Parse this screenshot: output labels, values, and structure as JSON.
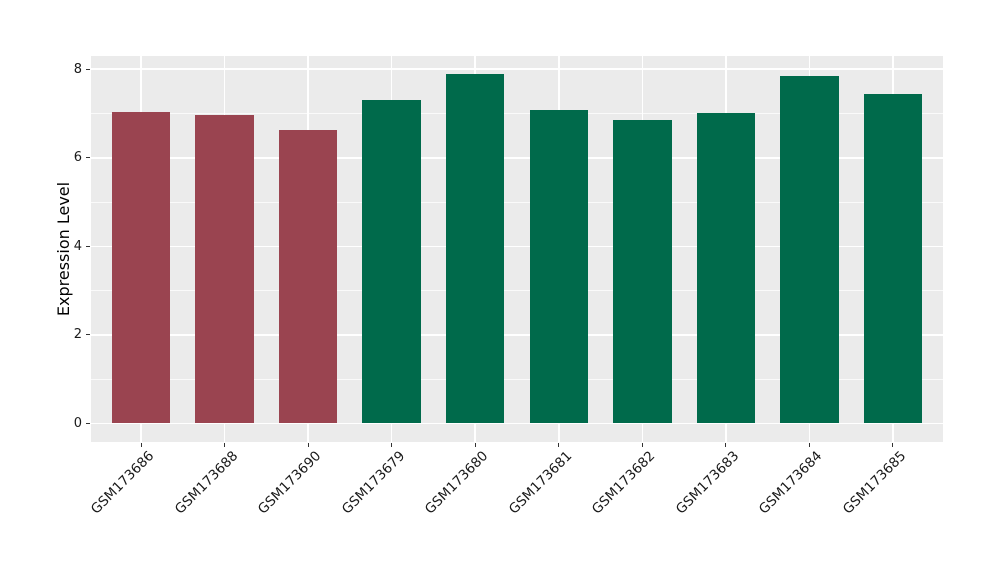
{
  "chart_data": {
    "type": "bar",
    "title": "",
    "xlabel": "",
    "ylabel": "Expression Level",
    "categories": [
      "GSM173686",
      "GSM173688",
      "GSM173690",
      "GSM173679",
      "GSM173680",
      "GSM173681",
      "GSM173682",
      "GSM173683",
      "GSM173684",
      "GSM173685"
    ],
    "values": [
      7.03,
      6.96,
      6.63,
      7.3,
      7.89,
      7.08,
      6.85,
      7.01,
      7.84,
      7.45
    ],
    "bar_colors": [
      "#9A4450",
      "#9A4450",
      "#9A4450",
      "#006A4B",
      "#006A4B",
      "#006A4B",
      "#006A4B",
      "#006A4B",
      "#006A4B",
      "#006A4B"
    ],
    "yticks": [
      0,
      2,
      4,
      6,
      8
    ],
    "minor_yticks": [
      1,
      3,
      5,
      7
    ],
    "ylim": [
      -0.42,
      8.3
    ],
    "grid": true,
    "legend": "none",
    "panel_bg": "#EBEBEB",
    "grid_color": "#FFFFFF",
    "tick_color": "#333333",
    "bar_width_fraction": 0.7,
    "x_label_rotation_deg": 45
  }
}
